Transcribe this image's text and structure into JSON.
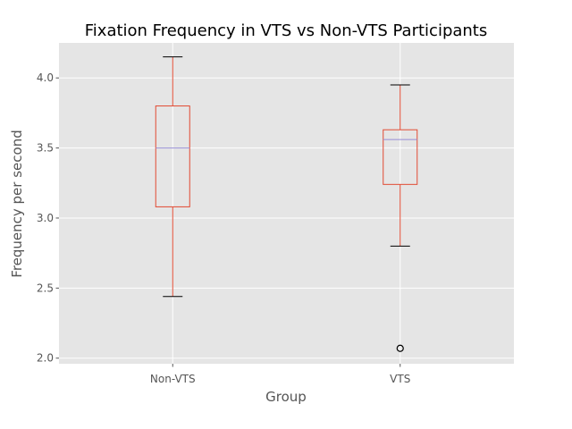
{
  "chart_data": {
    "type": "box",
    "title": "Fixation Frequency in VTS vs Non-VTS Participants",
    "xlabel": "Group",
    "ylabel": "Frequency per second",
    "categories": [
      "Non-VTS",
      "VTS"
    ],
    "ylim": [
      1.96,
      4.25
    ],
    "yticks": [
      "2.0",
      "2.5",
      "3.0",
      "3.5",
      "4.0"
    ],
    "grid": true,
    "series": [
      {
        "category": "Non-VTS",
        "whisker_low": 2.44,
        "q1": 3.08,
        "median": 3.5,
        "q3": 3.8,
        "whisker_high": 4.15,
        "outliers": []
      },
      {
        "category": "VTS",
        "whisker_low": 2.8,
        "q1": 3.24,
        "median": 3.56,
        "q3": 3.63,
        "whisker_high": 3.95,
        "outliers": [
          2.07
        ]
      }
    ],
    "colors": {
      "plot_bg": "#e5e5e5",
      "grid": "#ffffff",
      "box": "#e24a33",
      "median": "#988ed5",
      "cap": "#000000",
      "outlier": "#000000"
    }
  }
}
